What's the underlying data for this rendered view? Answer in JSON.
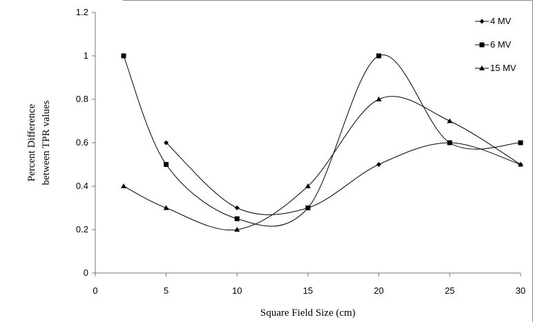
{
  "chart_data": {
    "type": "line",
    "xlabel": "Square Field Size (cm)",
    "ylabel": [
      "Percent  Difference",
      "between TPR values"
    ],
    "xlim": [
      0,
      30
    ],
    "ylim": [
      0,
      1.2
    ],
    "xticks": [
      0,
      5,
      10,
      15,
      20,
      25,
      30
    ],
    "yticks": [
      0,
      0.2,
      0.4,
      0.6,
      0.8,
      1,
      1.2
    ],
    "xtick_labels": [
      "0",
      "5",
      "10",
      "15",
      "20",
      "25",
      "30"
    ],
    "ytick_labels": [
      "0",
      "0.2",
      "0.4",
      "0.6",
      "0.8",
      "1",
      "1.2"
    ],
    "grid": false,
    "smooth": true,
    "legend_position": "top-right",
    "series": [
      {
        "name": "4 MV",
        "marker": "diamond",
        "x": [
          5,
          10,
          15,
          20,
          25,
          30
        ],
        "y": [
          0.6,
          0.3,
          0.3,
          0.5,
          0.6,
          0.5
        ]
      },
      {
        "name": "6 MV",
        "marker": "square",
        "x": [
          2,
          5,
          10,
          15,
          20,
          25,
          30
        ],
        "y": [
          1.0,
          0.5,
          0.25,
          0.3,
          1.0,
          0.6,
          0.6
        ]
      },
      {
        "name": "15 MV",
        "marker": "triangle",
        "x": [
          2,
          5,
          10,
          15,
          20,
          25,
          30
        ],
        "y": [
          0.4,
          0.3,
          0.2,
          0.4,
          0.8,
          0.7,
          0.5
        ]
      }
    ]
  }
}
